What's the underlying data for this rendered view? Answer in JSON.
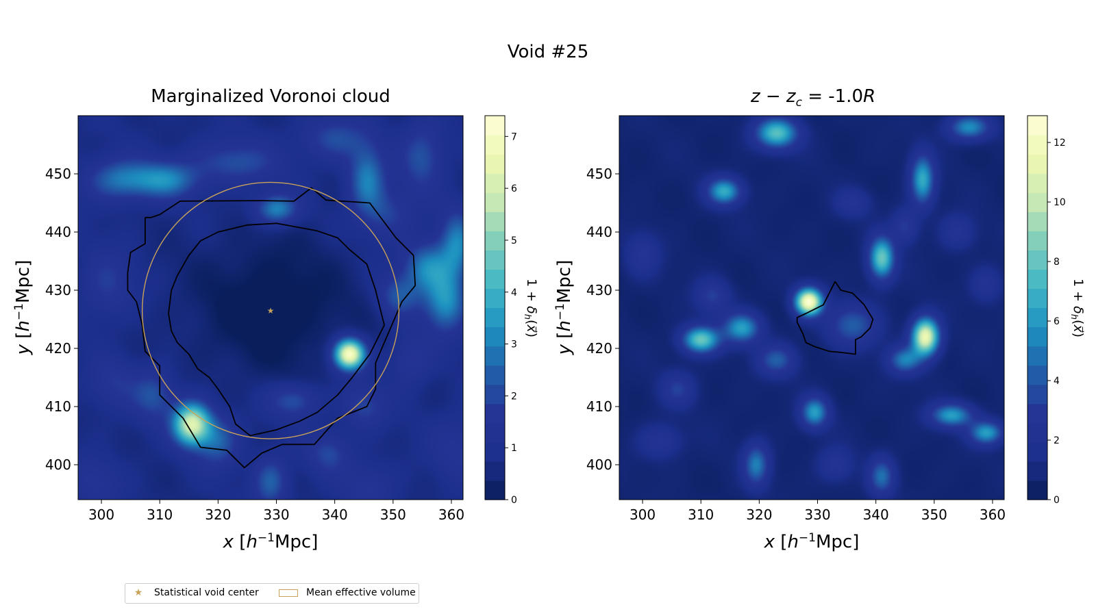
{
  "colors": {
    "cmap": [
      "#081d58",
      "#1d2f8d",
      "#253494",
      "#225ea8",
      "#1d91c0",
      "#41b6c4",
      "#7fcdbb",
      "#c7e9b4",
      "#edf8b1",
      "#ffffd9"
    ],
    "contour": "#000000",
    "accent": "#c8a25a"
  },
  "chart_data": [
    {
      "type": "heatmap",
      "figure_title": "Void #25",
      "title": "Marginalized Voronoi cloud",
      "xlabel": "x [h⁻¹Mpc]",
      "ylabel": "y [h⁻¹Mpc]",
      "xlim": [
        296,
        362
      ],
      "ylim": [
        394,
        460
      ],
      "xticks": [
        300,
        310,
        320,
        330,
        340,
        350,
        360
      ],
      "yticks": [
        400,
        410,
        420,
        430,
        440,
        450
      ],
      "colorbar": {
        "label": "1 + δh(x⃗)",
        "min": 0,
        "max": 7.4,
        "ticks": [
          0,
          1,
          2,
          3,
          4,
          5,
          6,
          7
        ]
      },
      "blobs": [
        {
          "x": 329,
          "y": 427,
          "amp": -0.9,
          "sx": 9,
          "sy": 8
        },
        {
          "x": 315.5,
          "y": 407,
          "amp": 5.5,
          "sx": 2.2,
          "sy": 2.5
        },
        {
          "x": 342.5,
          "y": 419,
          "amp": 6.5,
          "sx": 1.8,
          "sy": 1.8
        },
        {
          "x": 330,
          "y": 444,
          "amp": 2.5,
          "sx": 2.5,
          "sy": 1.8
        },
        {
          "x": 303,
          "y": 449,
          "amp": 2.0,
          "sx": 4,
          "sy": 2.5
        },
        {
          "x": 311,
          "y": 449,
          "amp": 2.3,
          "sx": 4,
          "sy": 2.2
        },
        {
          "x": 323,
          "y": 452,
          "amp": 1.5,
          "sx": 5,
          "sy": 2.5
        },
        {
          "x": 345.5,
          "y": 449,
          "amp": 2.3,
          "sx": 2.2,
          "sy": 4
        },
        {
          "x": 355,
          "y": 453,
          "amp": 1.6,
          "sx": 2.5,
          "sy": 4
        },
        {
          "x": 340,
          "y": 456,
          "amp": 1.4,
          "sx": 4,
          "sy": 2.5
        },
        {
          "x": 356,
          "y": 434,
          "amp": 2.4,
          "sx": 3,
          "sy": 3
        },
        {
          "x": 359,
          "y": 428,
          "amp": 2.6,
          "sx": 2.5,
          "sy": 3.5
        },
        {
          "x": 361,
          "y": 438,
          "amp": 2.2,
          "sx": 2,
          "sy": 4
        },
        {
          "x": 351,
          "y": 429,
          "amp": 1.5,
          "sx": 2.5,
          "sy": 2.5
        },
        {
          "x": 349,
          "y": 443,
          "amp": 1.2,
          "sx": 3,
          "sy": 3
        },
        {
          "x": 309,
          "y": 412,
          "amp": 1.5,
          "sx": 2.5,
          "sy": 3
        },
        {
          "x": 320,
          "y": 404,
          "amp": 1.8,
          "sx": 2.5,
          "sy": 3
        },
        {
          "x": 333,
          "y": 411,
          "amp": 1.6,
          "sx": 3,
          "sy": 2
        },
        {
          "x": 345,
          "y": 410,
          "amp": 1.3,
          "sx": 2.5,
          "sy": 2.5
        },
        {
          "x": 339,
          "y": 402,
          "amp": 1.3,
          "sx": 2.5,
          "sy": 2.5
        },
        {
          "x": 329,
          "y": 397,
          "amp": 1.8,
          "sx": 2,
          "sy": 3
        },
        {
          "x": 301,
          "y": 431,
          "amp": 1.1,
          "sx": 3,
          "sy": 4
        },
        {
          "x": 302,
          "y": 414,
          "amp": 0.9,
          "sx": 3,
          "sy": 3
        },
        {
          "x": 361,
          "y": 403,
          "amp": 0.8,
          "sx": 3,
          "sy": 4
        },
        {
          "x": 299,
          "y": 397,
          "amp": 0.8,
          "sx": 3,
          "sy": 3
        },
        {
          "x": 346,
          "y": 396,
          "amp": 0.9,
          "sx": 3,
          "sy": 3
        },
        {
          "x": 353,
          "y": 418,
          "amp": 1.0,
          "sx": 2.5,
          "sy": 3
        }
      ],
      "contours": [
        [
          [
            307.5,
            442.5
          ],
          [
            308.5,
            442.5
          ],
          [
            310,
            443
          ],
          [
            313.5,
            445.3
          ],
          [
            327,
            445.4
          ],
          [
            333,
            445.3
          ],
          [
            336,
            447.6
          ],
          [
            338.5,
            445.5
          ],
          [
            346,
            445
          ],
          [
            350.5,
            439
          ],
          [
            353.5,
            436
          ],
          [
            353.8,
            430.8
          ],
          [
            351.5,
            428
          ],
          [
            348.5,
            421
          ],
          [
            347,
            417.5
          ],
          [
            347,
            413
          ],
          [
            345.5,
            410
          ],
          [
            340.5,
            408
          ],
          [
            336.5,
            403.5
          ],
          [
            331,
            403.5
          ],
          [
            327.5,
            402
          ],
          [
            324.5,
            399.5
          ],
          [
            321.5,
            402.5
          ],
          [
            317,
            403
          ],
          [
            314,
            408
          ],
          [
            310,
            412
          ],
          [
            310,
            417
          ],
          [
            307.5,
            419.5
          ],
          [
            307,
            424
          ],
          [
            306,
            428
          ],
          [
            304.5,
            430
          ],
          [
            304.5,
            433
          ],
          [
            305,
            436.5
          ],
          [
            307.5,
            438
          ],
          [
            307.5,
            442.5
          ]
        ],
        [
          [
            317,
            438.5
          ],
          [
            320,
            440
          ],
          [
            325,
            441.2
          ],
          [
            330,
            441.5
          ],
          [
            337,
            440.2
          ],
          [
            340.5,
            439
          ],
          [
            342.5,
            437
          ],
          [
            345.5,
            434.5
          ],
          [
            347,
            430
          ],
          [
            348.5,
            424
          ],
          [
            346,
            419
          ],
          [
            343,
            415
          ],
          [
            340.5,
            412
          ],
          [
            337,
            409
          ],
          [
            334,
            407.5
          ],
          [
            330,
            406
          ],
          [
            325.5,
            405
          ],
          [
            323,
            407
          ],
          [
            322,
            410
          ],
          [
            320,
            413
          ],
          [
            318.5,
            415
          ],
          [
            316.5,
            416.5
          ],
          [
            315,
            419
          ],
          [
            313,
            421
          ],
          [
            312,
            423
          ],
          [
            311.5,
            426
          ],
          [
            312,
            430
          ],
          [
            313,
            432.5
          ],
          [
            315,
            436
          ],
          [
            317,
            438.5
          ]
        ]
      ],
      "circle": {
        "cx": 329,
        "cy": 426.5,
        "r": 22
      },
      "center": {
        "x": 329,
        "y": 426.5
      }
    },
    {
      "type": "heatmap",
      "title": "z − z_c = -1.0R",
      "xlabel": "x [h⁻¹Mpc]",
      "ylabel": "y [h⁻¹Mpc]",
      "xlim": [
        296,
        362
      ],
      "ylim": [
        394,
        460
      ],
      "xticks": [
        300,
        310,
        320,
        330,
        340,
        350,
        360
      ],
      "yticks": [
        400,
        410,
        420,
        430,
        440,
        450
      ],
      "colorbar": {
        "label": "1 + δh(x⃗)",
        "min": 0,
        "max": 12.9,
        "ticks": [
          0,
          2,
          4,
          6,
          8,
          10,
          12
        ]
      },
      "blobs": [
        {
          "x": 328.5,
          "y": 428,
          "amp": 12.0,
          "sx": 1.6,
          "sy": 1.6
        },
        {
          "x": 348.5,
          "y": 422,
          "amp": 11.0,
          "sx": 1.6,
          "sy": 2.2
        },
        {
          "x": 341,
          "y": 435.5,
          "amp": 7.5,
          "sx": 1.5,
          "sy": 2.5
        },
        {
          "x": 310,
          "y": 421.5,
          "amp": 7.5,
          "sx": 2.2,
          "sy": 1.6
        },
        {
          "x": 323,
          "y": 457,
          "amp": 7.0,
          "sx": 2.5,
          "sy": 1.8
        },
        {
          "x": 314,
          "y": 447,
          "amp": 6.0,
          "sx": 2,
          "sy": 1.6
        },
        {
          "x": 317,
          "y": 423.5,
          "amp": 5.5,
          "sx": 2.2,
          "sy": 1.8
        },
        {
          "x": 348,
          "y": 449,
          "amp": 6.0,
          "sx": 1.4,
          "sy": 3
        },
        {
          "x": 353,
          "y": 408.5,
          "amp": 5.5,
          "sx": 2.5,
          "sy": 1.4
        },
        {
          "x": 359,
          "y": 405.5,
          "amp": 5.5,
          "sx": 2,
          "sy": 1.4
        },
        {
          "x": 329.5,
          "y": 409,
          "amp": 5.5,
          "sx": 1.6,
          "sy": 1.8
        },
        {
          "x": 319.5,
          "y": 400,
          "amp": 4.5,
          "sx": 1.5,
          "sy": 2.5
        },
        {
          "x": 341,
          "y": 398,
          "amp": 4.0,
          "sx": 1.5,
          "sy": 2.2
        },
        {
          "x": 356,
          "y": 458,
          "amp": 5.0,
          "sx": 2.5,
          "sy": 1.5
        },
        {
          "x": 345,
          "y": 418,
          "amp": 4.5,
          "sx": 2,
          "sy": 1.6
        },
        {
          "x": 323,
          "y": 418,
          "amp": 3.5,
          "sx": 2.2,
          "sy": 1.8
        },
        {
          "x": 336,
          "y": 424,
          "amp": 3.5,
          "sx": 3,
          "sy": 2.5
        },
        {
          "x": 306,
          "y": 413,
          "amp": 2.5,
          "sx": 2,
          "sy": 2
        },
        {
          "x": 312,
          "y": 429,
          "amp": 2.5,
          "sx": 2,
          "sy": 2
        },
        {
          "x": 303,
          "y": 404,
          "amp": 2.0,
          "sx": 2.5,
          "sy": 2
        },
        {
          "x": 354,
          "y": 440,
          "amp": 2.0,
          "sx": 2,
          "sy": 2
        },
        {
          "x": 300,
          "y": 436,
          "amp": 2.0,
          "sx": 2,
          "sy": 2.5
        },
        {
          "x": 336,
          "y": 445,
          "amp": 2.0,
          "sx": 2,
          "sy": 1.6
        },
        {
          "x": 345,
          "y": 441,
          "amp": 2.5,
          "sx": 1.5,
          "sy": 2
        },
        {
          "x": 359,
          "y": 431,
          "amp": 2.0,
          "sx": 1.8,
          "sy": 2
        },
        {
          "x": 333,
          "y": 400,
          "amp": 2.0,
          "sx": 2,
          "sy": 2
        }
      ],
      "contours": [
        [
          [
            333,
            431.5
          ],
          [
            334,
            430
          ],
          [
            336,
            429.5
          ],
          [
            338,
            427.5
          ],
          [
            339.5,
            425
          ],
          [
            339,
            423.5
          ],
          [
            337.5,
            422
          ],
          [
            336.5,
            421.5
          ],
          [
            336.5,
            419
          ],
          [
            334,
            419.3
          ],
          [
            332,
            419.5
          ],
          [
            329.5,
            420.3
          ],
          [
            328,
            421
          ],
          [
            327.5,
            422.5
          ],
          [
            326.5,
            424.5
          ],
          [
            326.5,
            425.3
          ],
          [
            328,
            426
          ],
          [
            329,
            426.5
          ],
          [
            331,
            427.5
          ],
          [
            333,
            431.5
          ]
        ]
      ]
    }
  ],
  "legend": {
    "center_label": "Statistical void center",
    "volume_label": "Mean effective volume"
  }
}
